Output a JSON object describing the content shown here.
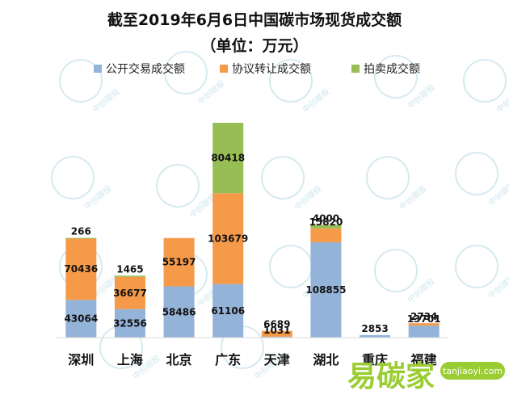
{
  "colors": {
    "public": "#94b3d8",
    "negotiated": "#f59a49",
    "auction": "#97bd55",
    "brand_green": "#9acd32"
  },
  "watermark": {
    "text": "中创碳投",
    "icon": "circle-ring-icon"
  },
  "brand": {
    "name": "易碳家",
    "domain": "tanjiaoyi.com"
  },
  "chart_data": {
    "type": "bar",
    "stacked": true,
    "title": "截至2019年6月6日中国碳市场现货成交额",
    "subtitle": "（单位：万元）",
    "legend_position": "top",
    "categories": [
      "深圳",
      "上海",
      "北京",
      "广东",
      "天津",
      "湖北",
      "重庆",
      "福建"
    ],
    "series": [
      {
        "name": "公开交易成交额",
        "color_key": "public",
        "values": [
          43064,
          32556,
          58486,
          61106,
          1031,
          108855,
          2853,
          13701
        ],
        "labels": [
          "43064",
          "32556",
          "58486",
          "61106",
          "1031",
          "108855",
          "2853",
          "13701"
        ]
      },
      {
        "name": "协议转让成交额",
        "color_key": "negotiated",
        "values": [
          70436,
          36677,
          55197,
          103679,
          6689,
          15820,
          0,
          2734
        ],
        "labels": [
          "70436",
          "36677",
          "55197",
          "103679",
          "6689",
          "15820",
          "",
          "2734"
        ]
      },
      {
        "name": "拍卖成交额",
        "color_key": "auction",
        "values": [
          266,
          1465,
          0,
          80418,
          0,
          4000,
          0,
          0
        ],
        "labels": [
          "266",
          "1465",
          "",
          "80418",
          "",
          "4000",
          "",
          ""
        ]
      }
    ],
    "ylim": [
      0,
      245203
    ],
    "grid": false
  }
}
